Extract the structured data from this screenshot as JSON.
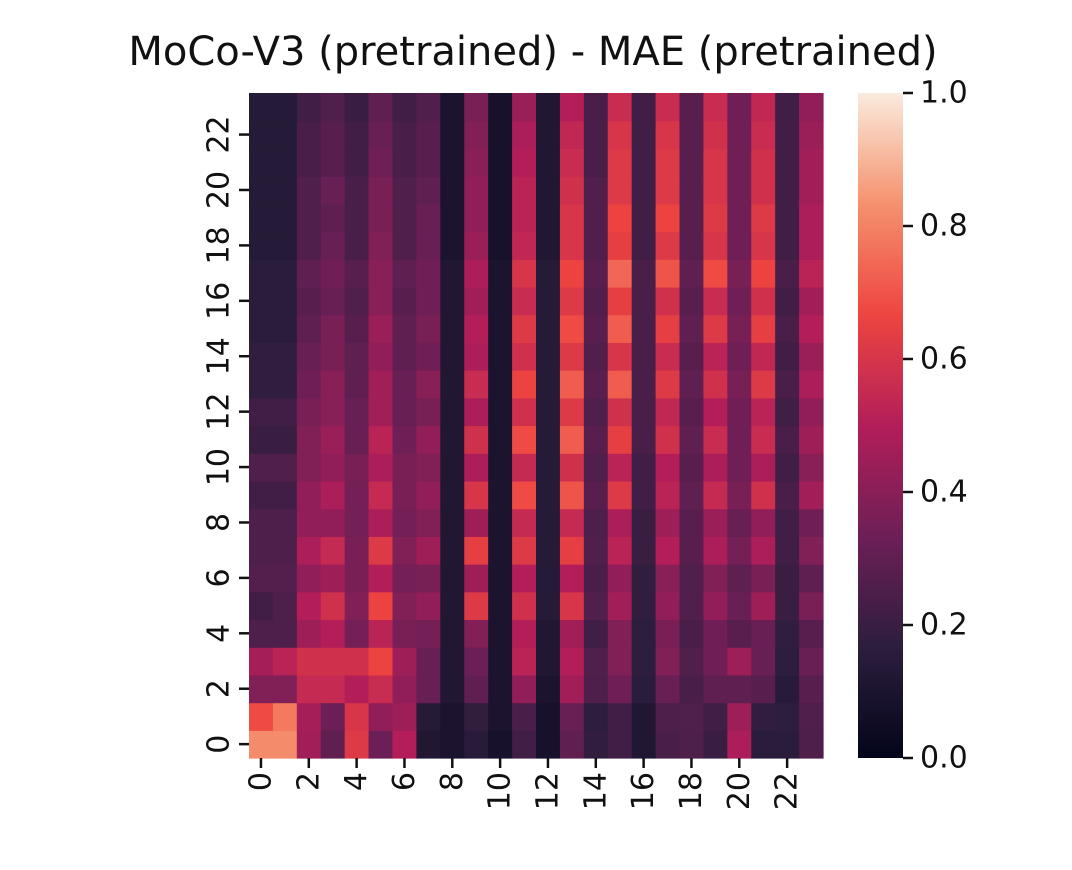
{
  "chart_data": {
    "type": "heatmap",
    "title": "MoCo-V3 (pretrained) - MAE (pretrained)",
    "xlabel": "",
    "ylabel": "",
    "x_ticks": [
      "0",
      "2",
      "4",
      "6",
      "8",
      "10",
      "12",
      "14",
      "16",
      "18",
      "20",
      "22"
    ],
    "y_ticks": [
      "0",
      "2",
      "4",
      "6",
      "8",
      "10",
      "12",
      "14",
      "16",
      "18",
      "20",
      "22"
    ],
    "colorbar": {
      "min": 0.0,
      "max": 1.0,
      "ticks": [
        "0.0",
        "0.2",
        "0.4",
        "0.6",
        "0.8",
        "1.0"
      ]
    },
    "colormap": [
      "#03051a",
      "#2c1e3d",
      "#6d1f56",
      "#b31e59",
      "#ee4540",
      "#f5916e",
      "#faebdd"
    ],
    "rows_bottom_to_top": [
      [
        0.82,
        0.82,
        0.46,
        0.3,
        0.62,
        0.33,
        0.5,
        0.12,
        0.1,
        0.15,
        0.08,
        0.22,
        0.08,
        0.3,
        0.18,
        0.22,
        0.12,
        0.24,
        0.25,
        0.2,
        0.48,
        0.16,
        0.16,
        0.25
      ],
      [
        0.68,
        0.78,
        0.47,
        0.33,
        0.6,
        0.42,
        0.45,
        0.14,
        0.1,
        0.18,
        0.1,
        0.24,
        0.08,
        0.32,
        0.17,
        0.22,
        0.12,
        0.25,
        0.26,
        0.22,
        0.45,
        0.18,
        0.17,
        0.26
      ],
      [
        0.38,
        0.38,
        0.55,
        0.55,
        0.5,
        0.56,
        0.42,
        0.32,
        0.12,
        0.3,
        0.1,
        0.42,
        0.1,
        0.46,
        0.25,
        0.34,
        0.16,
        0.32,
        0.24,
        0.3,
        0.3,
        0.28,
        0.15,
        0.28
      ],
      [
        0.47,
        0.52,
        0.58,
        0.58,
        0.58,
        0.66,
        0.45,
        0.32,
        0.12,
        0.33,
        0.1,
        0.52,
        0.12,
        0.5,
        0.26,
        0.38,
        0.17,
        0.38,
        0.26,
        0.34,
        0.45,
        0.32,
        0.17,
        0.32
      ],
      [
        0.25,
        0.25,
        0.45,
        0.5,
        0.35,
        0.52,
        0.36,
        0.35,
        0.12,
        0.38,
        0.1,
        0.5,
        0.12,
        0.46,
        0.22,
        0.38,
        0.17,
        0.36,
        0.24,
        0.34,
        0.28,
        0.32,
        0.18,
        0.28
      ],
      [
        0.22,
        0.25,
        0.5,
        0.58,
        0.38,
        0.66,
        0.38,
        0.42,
        0.12,
        0.62,
        0.1,
        0.58,
        0.14,
        0.6,
        0.26,
        0.46,
        0.18,
        0.42,
        0.26,
        0.42,
        0.32,
        0.45,
        0.2,
        0.36
      ],
      [
        0.27,
        0.27,
        0.42,
        0.45,
        0.36,
        0.5,
        0.35,
        0.36,
        0.12,
        0.45,
        0.1,
        0.5,
        0.14,
        0.5,
        0.24,
        0.42,
        0.18,
        0.4,
        0.26,
        0.38,
        0.3,
        0.36,
        0.2,
        0.3
      ],
      [
        0.25,
        0.25,
        0.48,
        0.55,
        0.36,
        0.62,
        0.38,
        0.45,
        0.12,
        0.64,
        0.1,
        0.62,
        0.14,
        0.64,
        0.26,
        0.52,
        0.2,
        0.5,
        0.28,
        0.48,
        0.35,
        0.48,
        0.22,
        0.38
      ],
      [
        0.25,
        0.25,
        0.42,
        0.42,
        0.35,
        0.48,
        0.35,
        0.38,
        0.12,
        0.45,
        0.1,
        0.55,
        0.14,
        0.55,
        0.25,
        0.48,
        0.2,
        0.45,
        0.28,
        0.44,
        0.32,
        0.42,
        0.22,
        0.34
      ],
      [
        0.22,
        0.22,
        0.42,
        0.48,
        0.35,
        0.55,
        0.36,
        0.42,
        0.12,
        0.6,
        0.1,
        0.68,
        0.14,
        0.7,
        0.28,
        0.62,
        0.22,
        0.52,
        0.3,
        0.55,
        0.36,
        0.58,
        0.24,
        0.46
      ],
      [
        0.26,
        0.26,
        0.38,
        0.42,
        0.36,
        0.48,
        0.36,
        0.38,
        0.12,
        0.48,
        0.1,
        0.55,
        0.14,
        0.58,
        0.26,
        0.52,
        0.22,
        0.5,
        0.28,
        0.48,
        0.34,
        0.48,
        0.22,
        0.4
      ],
      [
        0.2,
        0.2,
        0.38,
        0.44,
        0.32,
        0.52,
        0.34,
        0.42,
        0.12,
        0.58,
        0.1,
        0.68,
        0.14,
        0.72,
        0.28,
        0.64,
        0.24,
        0.58,
        0.3,
        0.56,
        0.34,
        0.56,
        0.24,
        0.45
      ],
      [
        0.22,
        0.22,
        0.36,
        0.4,
        0.32,
        0.46,
        0.32,
        0.36,
        0.12,
        0.48,
        0.1,
        0.58,
        0.14,
        0.62,
        0.26,
        0.58,
        0.24,
        0.54,
        0.28,
        0.5,
        0.34,
        0.52,
        0.22,
        0.42
      ],
      [
        0.18,
        0.18,
        0.34,
        0.4,
        0.3,
        0.46,
        0.32,
        0.4,
        0.12,
        0.56,
        0.1,
        0.66,
        0.14,
        0.72,
        0.28,
        0.72,
        0.24,
        0.62,
        0.3,
        0.58,
        0.36,
        0.62,
        0.24,
        0.48
      ],
      [
        0.18,
        0.18,
        0.32,
        0.36,
        0.3,
        0.42,
        0.3,
        0.34,
        0.12,
        0.48,
        0.1,
        0.58,
        0.14,
        0.62,
        0.26,
        0.6,
        0.24,
        0.56,
        0.28,
        0.52,
        0.34,
        0.54,
        0.22,
        0.44
      ],
      [
        0.16,
        0.16,
        0.3,
        0.36,
        0.28,
        0.44,
        0.3,
        0.36,
        0.12,
        0.5,
        0.1,
        0.62,
        0.14,
        0.68,
        0.28,
        0.72,
        0.24,
        0.64,
        0.3,
        0.62,
        0.36,
        0.64,
        0.24,
        0.5
      ],
      [
        0.16,
        0.16,
        0.28,
        0.32,
        0.26,
        0.4,
        0.28,
        0.34,
        0.12,
        0.46,
        0.1,
        0.56,
        0.14,
        0.62,
        0.26,
        0.64,
        0.24,
        0.58,
        0.28,
        0.56,
        0.34,
        0.58,
        0.22,
        0.46
      ],
      [
        0.16,
        0.16,
        0.3,
        0.34,
        0.28,
        0.4,
        0.3,
        0.34,
        0.12,
        0.48,
        0.1,
        0.6,
        0.14,
        0.66,
        0.28,
        0.74,
        0.24,
        0.7,
        0.3,
        0.68,
        0.36,
        0.66,
        0.24,
        0.52
      ],
      [
        0.14,
        0.14,
        0.26,
        0.32,
        0.24,
        0.38,
        0.26,
        0.32,
        0.1,
        0.44,
        0.08,
        0.54,
        0.12,
        0.6,
        0.26,
        0.64,
        0.22,
        0.62,
        0.28,
        0.6,
        0.34,
        0.6,
        0.22,
        0.48
      ],
      [
        0.14,
        0.14,
        0.26,
        0.3,
        0.24,
        0.36,
        0.26,
        0.32,
        0.1,
        0.42,
        0.08,
        0.52,
        0.12,
        0.6,
        0.26,
        0.66,
        0.22,
        0.66,
        0.28,
        0.62,
        0.34,
        0.62,
        0.22,
        0.48
      ],
      [
        0.14,
        0.14,
        0.26,
        0.32,
        0.24,
        0.36,
        0.26,
        0.3,
        0.1,
        0.42,
        0.08,
        0.52,
        0.12,
        0.58,
        0.26,
        0.62,
        0.22,
        0.62,
        0.28,
        0.6,
        0.34,
        0.58,
        0.22,
        0.46
      ],
      [
        0.14,
        0.14,
        0.24,
        0.28,
        0.22,
        0.34,
        0.24,
        0.28,
        0.1,
        0.4,
        0.08,
        0.5,
        0.12,
        0.56,
        0.24,
        0.62,
        0.22,
        0.62,
        0.28,
        0.6,
        0.34,
        0.58,
        0.22,
        0.46
      ],
      [
        0.14,
        0.14,
        0.24,
        0.28,
        0.22,
        0.32,
        0.24,
        0.28,
        0.1,
        0.38,
        0.08,
        0.48,
        0.12,
        0.54,
        0.24,
        0.6,
        0.22,
        0.6,
        0.28,
        0.58,
        0.34,
        0.56,
        0.22,
        0.44
      ],
      [
        0.14,
        0.14,
        0.22,
        0.26,
        0.2,
        0.3,
        0.22,
        0.26,
        0.1,
        0.36,
        0.08,
        0.44,
        0.12,
        0.5,
        0.24,
        0.56,
        0.22,
        0.56,
        0.28,
        0.56,
        0.34,
        0.54,
        0.22,
        0.42
      ]
    ]
  }
}
